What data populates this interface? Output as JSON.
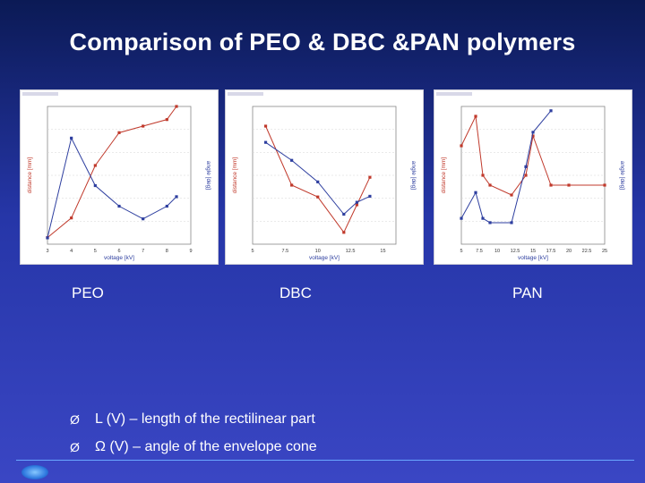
{
  "title": "Comparison of PEO & DBC &PAN polymers",
  "labels": {
    "peo": "PEO",
    "dbc": "DBC",
    "pan": "PAN"
  },
  "bullets": [
    {
      "marker": "Ø",
      "text": "L (V) – length of the rectilinear part"
    },
    {
      "marker": "Ø",
      "text": "Ω (V) – angle of the envelope cone"
    }
  ],
  "colors": {
    "distance": "#c0392b",
    "angle": "#2d3e9f",
    "footer_accent": "#6aa8ff"
  },
  "chart_data": [
    {
      "type": "line",
      "title": "PEO",
      "xlabel": "voltage [kV]",
      "ylabel": "distance [mm]",
      "y2label": "angle [deg]",
      "xlim": [
        3,
        9
      ],
      "ylim": [
        16,
        37
      ],
      "y2lim": [
        88,
        175
      ],
      "xticks": [
        "3",
        "4",
        "5",
        "6",
        "7",
        "8",
        "9"
      ],
      "series": [
        {
          "name": "distance",
          "axis": "left",
          "x": [
            3,
            4,
            5,
            6,
            7,
            8,
            8.4
          ],
          "y": [
            17,
            20,
            28,
            33,
            34,
            35,
            37
          ]
        },
        {
          "name": "angle",
          "axis": "right",
          "x": [
            3,
            4,
            5,
            6,
            7,
            8,
            8.4
          ],
          "y": [
            92,
            155,
            125,
            112,
            104,
            112,
            118
          ]
        }
      ]
    },
    {
      "type": "line",
      "title": "DBC",
      "xlabel": "voltage [kV]",
      "ylabel": "distance [mm]",
      "y2label": "angle [deg]",
      "xlim": [
        5,
        16
      ],
      "ylim": [
        5,
        40
      ],
      "y2lim": [
        20,
        135
      ],
      "xticks": [
        "5",
        "7.5",
        "10",
        "12.5",
        "15"
      ],
      "series": [
        {
          "name": "distance",
          "axis": "left",
          "x": [
            6,
            8,
            10,
            12,
            13,
            14
          ],
          "y": [
            35,
            20,
            17,
            8,
            15,
            22
          ]
        },
        {
          "name": "angle",
          "axis": "right",
          "x": [
            6,
            8,
            10,
            12,
            13,
            14
          ],
          "y": [
            105,
            90,
            72,
            45,
            55,
            60
          ]
        }
      ]
    },
    {
      "type": "line",
      "title": "PAN",
      "xlabel": "voltage [kV]",
      "ylabel": "distance [mm]",
      "y2label": "angle [deg]",
      "xlim": [
        5,
        25
      ],
      "ylim": [
        0,
        14
      ],
      "y2lim": [
        20,
        180
      ],
      "xticks": [
        "5",
        "7.5",
        "10",
        "12.5",
        "15",
        "17.5",
        "20",
        "22.5",
        "25"
      ],
      "series": [
        {
          "name": "distance",
          "axis": "left",
          "x": [
            5,
            7,
            8,
            9,
            12,
            14,
            15,
            17.5,
            20,
            25
          ],
          "y": [
            10,
            13,
            7,
            6,
            5,
            7,
            11,
            6,
            6,
            6
          ]
        },
        {
          "name": "angle",
          "axis": "right",
          "x": [
            5,
            7,
            8,
            9,
            12,
            14,
            15,
            17.5
          ],
          "y": [
            50,
            80,
            50,
            45,
            45,
            110,
            150,
            175
          ]
        }
      ]
    }
  ]
}
